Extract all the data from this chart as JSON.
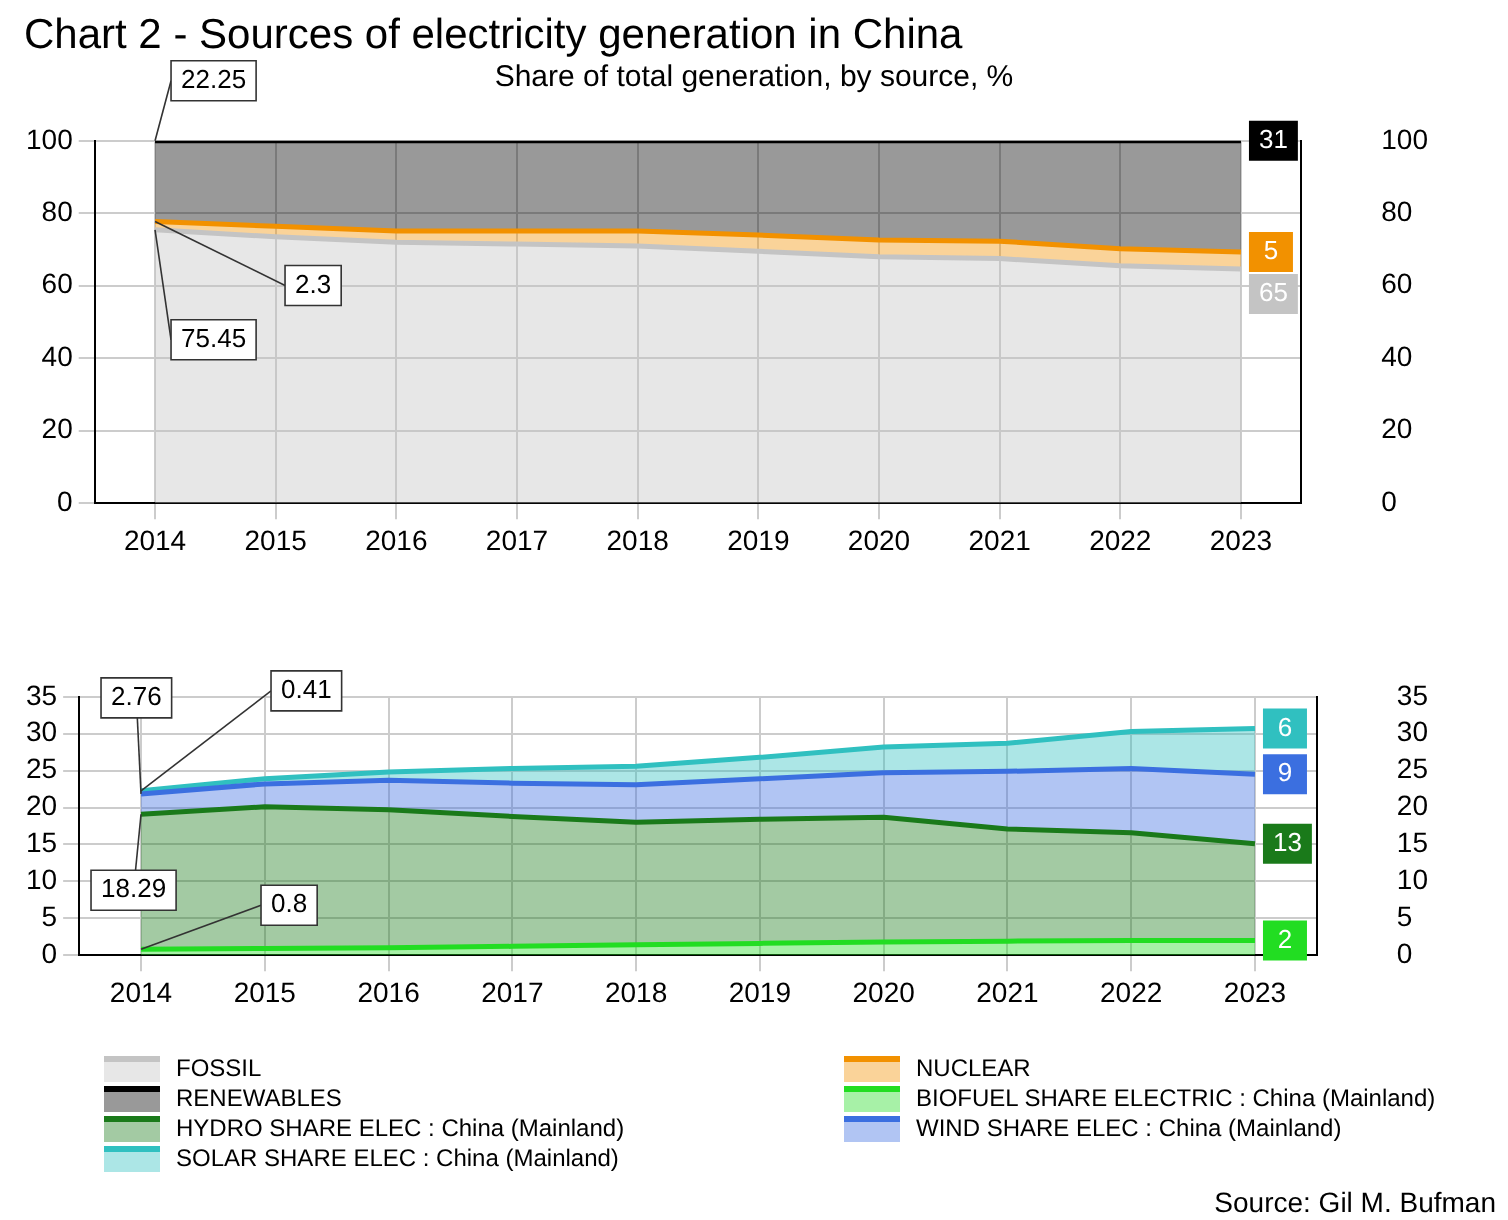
{
  "chart_data": [
    {
      "type": "area",
      "title": "Chart 2 - Sources of electricity generation in China",
      "subtitle": "Share of total generation, by source, %",
      "categories": [
        "2014",
        "2015",
        "2016",
        "2017",
        "2018",
        "2019",
        "2020",
        "2021",
        "2022",
        "2023"
      ],
      "stacked": true,
      "ylim": [
        0,
        100
      ],
      "yticks": [
        0,
        20,
        40,
        60,
        80,
        100
      ],
      "y2lim": [
        0,
        100
      ],
      "y2ticks": [
        0,
        20,
        40,
        60,
        80,
        100
      ],
      "grid": true,
      "legend": "bottom",
      "series": [
        {
          "name": "FOSSIL",
          "color": "#c4c4c4",
          "values": [
            75.45,
            73.5,
            72,
            71.5,
            71,
            69.5,
            68,
            67.5,
            65.5,
            64.6
          ],
          "value_labels": [
            "75.45",
            null,
            null,
            null,
            null,
            null,
            null,
            null,
            null,
            "65"
          ]
        },
        {
          "name": "NUCLEAR",
          "color": "#f29100",
          "values": [
            2.3,
            2.9,
            3.1,
            3.6,
            4.1,
            4.5,
            4.6,
            4.8,
            4.7,
            4.7
          ],
          "value_labels": [
            "2.3",
            null,
            null,
            null,
            null,
            null,
            null,
            null,
            null,
            "5"
          ]
        },
        {
          "name": "RENEWABLES",
          "color": "#000000",
          "values": [
            22.25,
            23.6,
            24.9,
            24.9,
            24.9,
            26,
            27.4,
            27.7,
            29.8,
            30.7
          ],
          "value_labels": [
            "22.25",
            null,
            null,
            null,
            null,
            null,
            null,
            null,
            null,
            "31"
          ]
        }
      ]
    },
    {
      "type": "area",
      "categories": [
        "2014",
        "2015",
        "2016",
        "2017",
        "2018",
        "2019",
        "2020",
        "2021",
        "2022",
        "2023"
      ],
      "stacked": true,
      "ylim": [
        0,
        35
      ],
      "yticks": [
        0,
        5,
        10,
        15,
        20,
        25,
        30,
        35
      ],
      "y2lim": [
        0,
        35
      ],
      "y2ticks": [
        0,
        5,
        10,
        15,
        20,
        25,
        30,
        35
      ],
      "grid": true,
      "legend": "bottom",
      "annotations": [
        "Source: Gil M. Bufman"
      ],
      "series": [
        {
          "name": "BIOFUEL SHARE ELECTRIC : China (Mainland)",
          "color": "#22dd22",
          "values": [
            0.8,
            0.9,
            1.0,
            1.2,
            1.4,
            1.6,
            1.8,
            1.9,
            2.0,
            2.0
          ],
          "value_labels": [
            "0.8",
            null,
            null,
            null,
            null,
            null,
            null,
            null,
            null,
            "2"
          ]
        },
        {
          "name": "HYDRO SHARE ELEC : China (Mainland)",
          "color": "#1a7a1a",
          "values": [
            18.29,
            19.2,
            18.7,
            17.6,
            16.6,
            16.8,
            16.9,
            15.2,
            14.6,
            13.1
          ],
          "value_labels": [
            "18.29",
            null,
            null,
            null,
            null,
            null,
            null,
            null,
            null,
            "13"
          ]
        },
        {
          "name": "WIND SHARE ELEC : China (Mainland)",
          "color": "#3b6fe0",
          "values": [
            2.76,
            3.1,
            4.0,
            4.5,
            5.1,
            5.5,
            6.0,
            7.8,
            8.7,
            9.4
          ],
          "value_labels": [
            "2.76",
            null,
            null,
            null,
            null,
            null,
            null,
            null,
            null,
            "9"
          ]
        },
        {
          "name": "SOLAR SHARE ELEC : China (Mainland)",
          "color": "#30c0c0",
          "values": [
            0.41,
            0.7,
            1.1,
            2.0,
            2.5,
            2.9,
            3.5,
            3.8,
            5.0,
            6.2
          ],
          "value_labels": [
            "0.41",
            null,
            null,
            null,
            null,
            null,
            null,
            null,
            null,
            "6"
          ]
        }
      ]
    }
  ]
}
